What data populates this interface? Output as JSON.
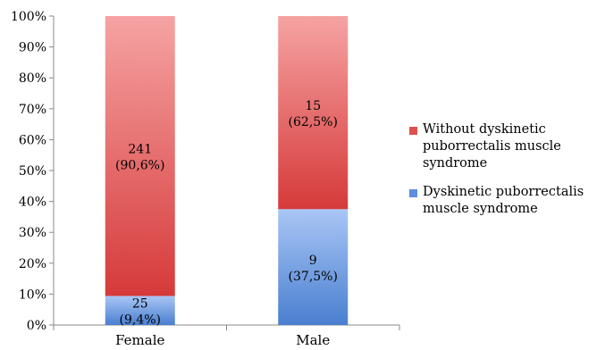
{
  "chart_data": {
    "type": "bar",
    "stacked": true,
    "normalized": true,
    "categories": [
      "Female",
      "Male"
    ],
    "series": [
      {
        "name": "Dyskinetic puborrectalis muscle syndrome",
        "values": [
          9.4,
          37.5
        ],
        "counts": [
          "25",
          "9"
        ],
        "labels": [
          "(9,4%)",
          "(37,5%)"
        ],
        "color_dark": "#4a7fd0",
        "color_light": "#a9c6f5",
        "legend_color": "#5b8fe0"
      },
      {
        "name": "Without dyskinetic puborrectalis muscle syndrome",
        "values": [
          90.6,
          62.5
        ],
        "counts": [
          "241",
          "15"
        ],
        "labels": [
          "(90,6%)",
          "(62,5%)"
        ],
        "color_dark": "#d63a3a",
        "color_light": "#f6a3a3",
        "legend_color": "#e05050"
      }
    ],
    "y_ticks": [
      "0%",
      "10%",
      "20%",
      "30%",
      "40%",
      "50%",
      "60%",
      "70%",
      "80%",
      "90%",
      "100%"
    ],
    "ylim": [
      0,
      100
    ],
    "legend_position": "right",
    "grid": false
  },
  "legend": {
    "items": [
      {
        "lines": [
          "Without dyskinetic",
          "puborrectalis muscle",
          "syndrome"
        ],
        "color": "#e05050"
      },
      {
        "lines": [
          "Dyskinetic puborrectalis",
          "muscle syndrome"
        ],
        "color": "#5b8fe0"
      }
    ]
  }
}
